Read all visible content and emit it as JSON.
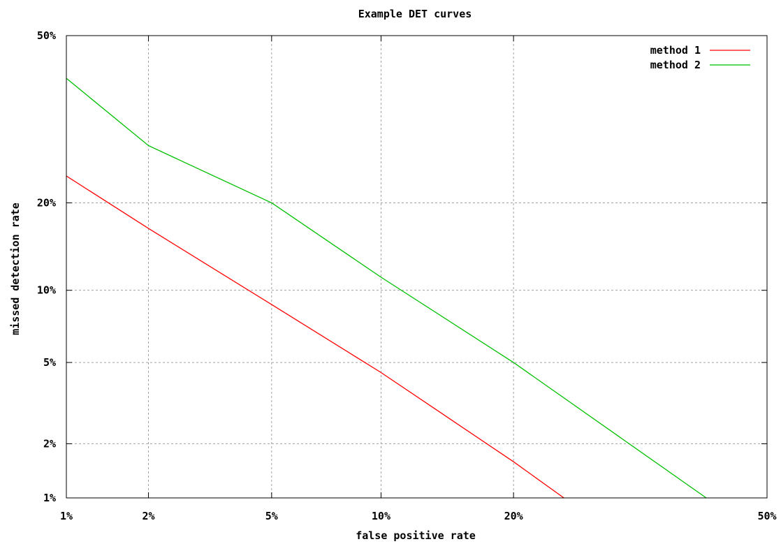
{
  "chart_data": {
    "type": "line",
    "title": "Example DET curves",
    "xlabel": "false positive rate",
    "ylabel": "missed detection rate",
    "x_scale": "normal-deviate (probit)",
    "y_scale": "normal-deviate (probit)",
    "xlim": [
      0.01,
      0.5
    ],
    "ylim": [
      0.01,
      0.5
    ],
    "x_ticks": [
      {
        "value": 0.01,
        "label": "1%"
      },
      {
        "value": 0.02,
        "label": "2%"
      },
      {
        "value": 0.05,
        "label": "5%"
      },
      {
        "value": 0.1,
        "label": "10%"
      },
      {
        "value": 0.2,
        "label": "20%"
      },
      {
        "value": 0.5,
        "label": "50%"
      }
    ],
    "y_ticks": [
      {
        "value": 0.01,
        "label": "1%"
      },
      {
        "value": 0.02,
        "label": "2%"
      },
      {
        "value": 0.05,
        "label": "5%"
      },
      {
        "value": 0.1,
        "label": "10%"
      },
      {
        "value": 0.2,
        "label": "20%"
      },
      {
        "value": 0.5,
        "label": "50%"
      }
    ],
    "grid": true,
    "legend_position": "top-right",
    "series": [
      {
        "name": "method 1",
        "color": "#ff0000",
        "x": [
          0.01,
          0.02,
          0.05,
          0.1,
          0.2,
          0.25
        ],
        "y": [
          0.24,
          0.166,
          0.088,
          0.045,
          0.016,
          0.01
        ]
      },
      {
        "name": "method 2",
        "color": "#00c000",
        "x": [
          0.01,
          0.02,
          0.05,
          0.1,
          0.2,
          0.42
        ],
        "y": [
          0.415,
          0.29,
          0.2,
          0.112,
          0.05,
          0.01
        ]
      }
    ]
  }
}
